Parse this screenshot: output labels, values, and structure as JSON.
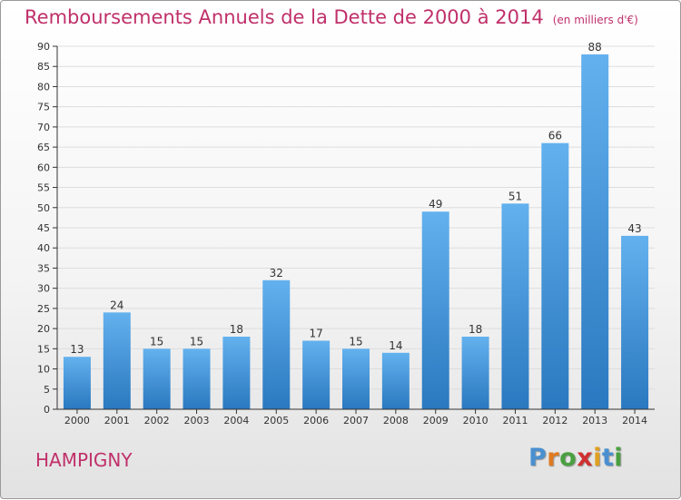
{
  "chart_data": {
    "type": "bar",
    "title": "Remboursements Annuels de la Dette de 2000 à 2014",
    "subtitle": "(en milliers d'€)",
    "categories": [
      "2000",
      "2001",
      "2002",
      "2003",
      "2004",
      "2005",
      "2006",
      "2007",
      "2008",
      "2009",
      "2010",
      "2011",
      "2012",
      "2013",
      "2014"
    ],
    "values": [
      13,
      24,
      15,
      15,
      18,
      32,
      17,
      15,
      14,
      49,
      18,
      51,
      66,
      88,
      43
    ],
    "ylim": [
      0,
      90
    ],
    "yticks": [
      0,
      5,
      10,
      15,
      20,
      25,
      30,
      35,
      40,
      45,
      50,
      55,
      60,
      65,
      70,
      75,
      80,
      85,
      90
    ],
    "xlabel": "",
    "ylabel": "",
    "grid": true,
    "bar_color": "#3a8fd4"
  },
  "footer": {
    "location": "HAMPIGNY",
    "logo_letters": [
      "P",
      "r",
      "o",
      "x",
      "i",
      "t",
      "i"
    ],
    "logo_colors": [
      "#4a90d0",
      "#e07a20",
      "#4aa040",
      "#d03030",
      "#e0a020",
      "#4a90d0",
      "#4aa040"
    ]
  },
  "colors": {
    "title": "#c0306a",
    "axis": "#333333",
    "grid": "#dddddd"
  }
}
